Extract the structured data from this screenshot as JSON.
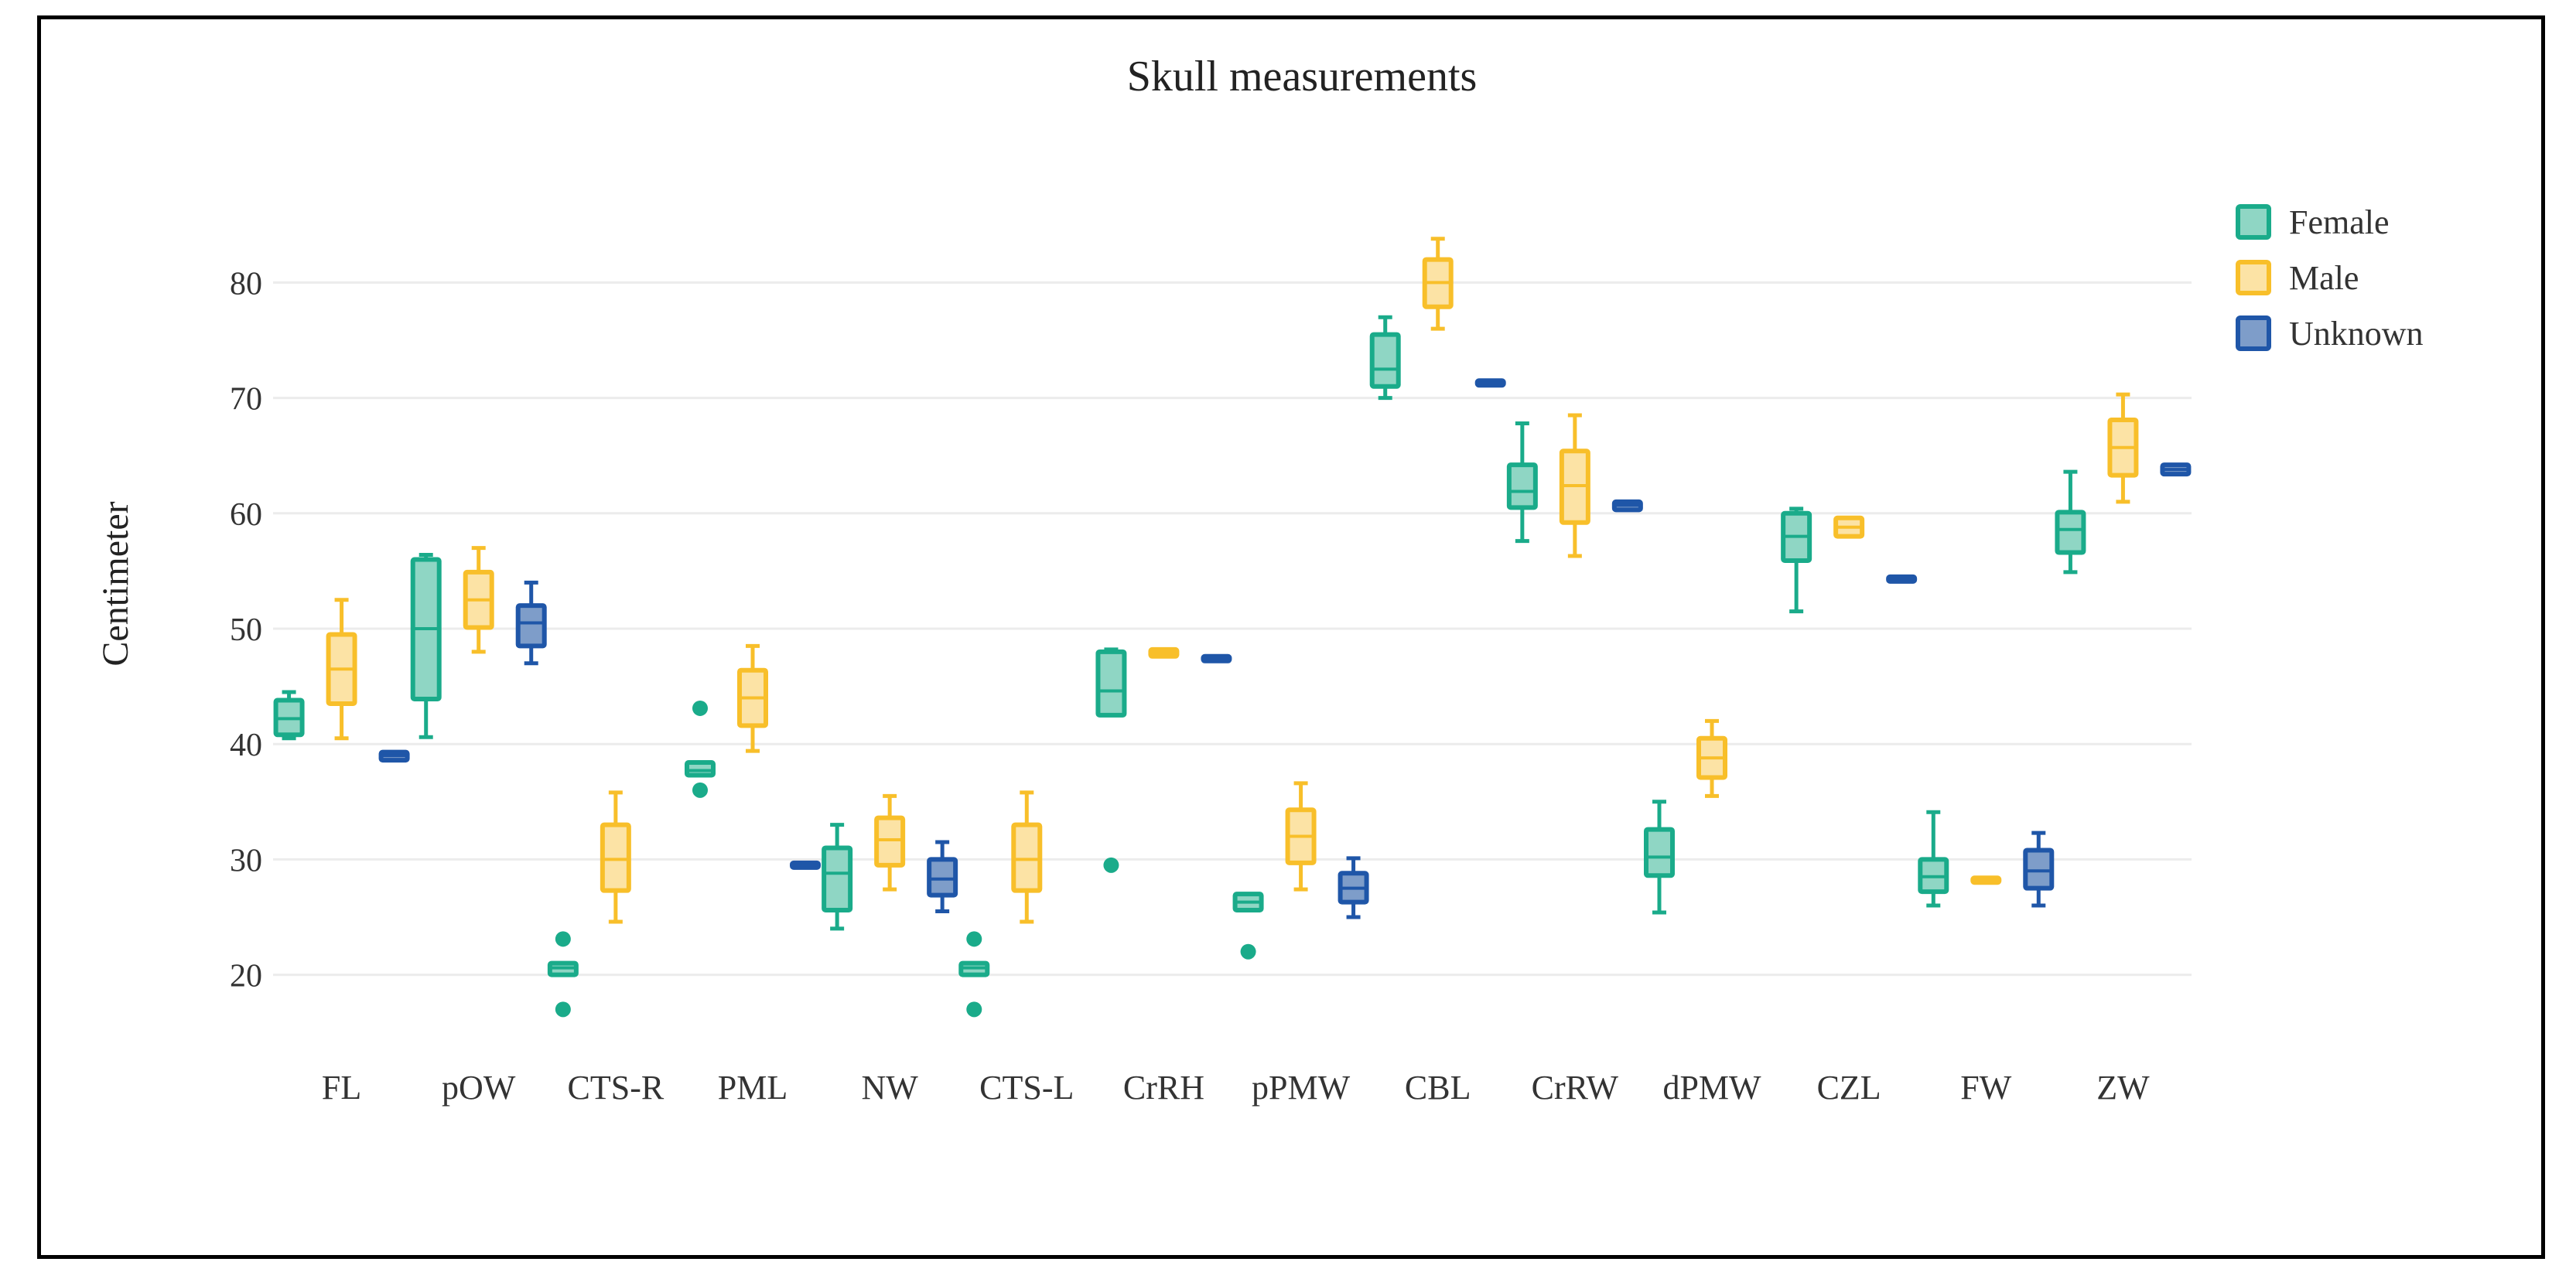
{
  "chart_data": {
    "type": "box",
    "title": "Skull measurements",
    "xlabel": "",
    "ylabel": "Centimeter",
    "ylim": [
      13,
      87
    ],
    "yticks": [
      20,
      30,
      40,
      50,
      60,
      70,
      80
    ],
    "grid": true,
    "legend_position": "top-right",
    "categories": [
      "FL",
      "pOW",
      "CTS-R",
      "PML",
      "NW",
      "CTS-L",
      "CrRH",
      "pPMW",
      "CBL",
      "CrRW",
      "dPMW",
      "CZL",
      "FW",
      "ZW"
    ],
    "series": [
      {
        "name": "Female",
        "color": "#1aab8a",
        "fill": "#8fd6c4",
        "boxes": [
          {
            "category": "FL",
            "min": 40.5,
            "q1": 40.8,
            "median": 42.2,
            "q3": 43.8,
            "max": 44.5,
            "outliers": []
          },
          {
            "category": "pOW",
            "min": 40.6,
            "q1": 43.9,
            "median": 50.0,
            "q3": 56.0,
            "max": 56.4,
            "outliers": []
          },
          {
            "category": "CTS-R",
            "min": 20.0,
            "q1": 20.0,
            "median": 20.6,
            "q3": 21.0,
            "max": 21.0,
            "outliers": [
              23.1,
              17.0
            ]
          },
          {
            "category": "PML",
            "min": 37.3,
            "q1": 37.3,
            "median": 37.7,
            "q3": 38.4,
            "max": 38.4,
            "outliers": [
              43.1,
              36.0
            ]
          },
          {
            "category": "NW",
            "min": 24.0,
            "q1": 25.6,
            "median": 28.8,
            "q3": 31.0,
            "max": 33.0,
            "outliers": []
          },
          {
            "category": "CTS-L",
            "min": 20.0,
            "q1": 20.0,
            "median": 20.6,
            "q3": 21.0,
            "max": 21.0,
            "outliers": [
              23.1,
              17.0
            ]
          },
          {
            "category": "CrRH",
            "min": 42.5,
            "q1": 42.5,
            "median": 44.6,
            "q3": 48.0,
            "max": 48.2,
            "outliers": [
              29.5
            ]
          },
          {
            "category": "pPMW",
            "min": 25.6,
            "q1": 25.6,
            "median": 26.3,
            "q3": 27.0,
            "max": 27.0,
            "outliers": [
              22.0
            ]
          },
          {
            "category": "CBL",
            "min": 70.0,
            "q1": 71.0,
            "median": 72.5,
            "q3": 75.5,
            "max": 77.0,
            "outliers": []
          },
          {
            "category": "CrRW",
            "min": 57.6,
            "q1": 60.5,
            "median": 61.9,
            "q3": 64.2,
            "max": 67.8,
            "outliers": []
          },
          {
            "category": "dPMW",
            "min": 25.4,
            "q1": 28.6,
            "median": 30.2,
            "q3": 32.6,
            "max": 35.0,
            "outliers": []
          },
          {
            "category": "CZL",
            "min": 51.5,
            "q1": 55.9,
            "median": 58.0,
            "q3": 60.0,
            "max": 60.4,
            "outliers": []
          },
          {
            "category": "FW",
            "min": 26.0,
            "q1": 27.2,
            "median": 28.5,
            "q3": 30.0,
            "max": 34.1,
            "outliers": []
          },
          {
            "category": "ZW",
            "min": 54.9,
            "q1": 56.6,
            "median": 58.6,
            "q3": 60.1,
            "max": 63.6,
            "outliers": []
          }
        ]
      },
      {
        "name": "Male",
        "color": "#f8bf2a",
        "fill": "#fce3a5",
        "boxes": [
          {
            "category": "FL",
            "min": 40.5,
            "q1": 43.5,
            "median": 46.5,
            "q3": 49.5,
            "max": 52.5,
            "outliers": []
          },
          {
            "category": "pOW",
            "min": 48.0,
            "q1": 50.1,
            "median": 52.5,
            "q3": 54.9,
            "max": 57.0,
            "outliers": []
          },
          {
            "category": "CTS-R",
            "min": 24.6,
            "q1": 27.3,
            "median": 30.0,
            "q3": 33.0,
            "max": 35.8,
            "outliers": []
          },
          {
            "category": "PML",
            "min": 39.4,
            "q1": 41.6,
            "median": 44.0,
            "q3": 46.4,
            "max": 48.5,
            "outliers": []
          },
          {
            "category": "NW",
            "min": 27.4,
            "q1": 29.5,
            "median": 31.7,
            "q3": 33.6,
            "max": 35.5,
            "outliers": []
          },
          {
            "category": "CTS-L",
            "min": 24.6,
            "q1": 27.3,
            "median": 30.0,
            "q3": 33.0,
            "max": 35.8,
            "outliers": []
          },
          {
            "category": "CrRH",
            "min": 47.6,
            "q1": 47.6,
            "median": 47.9,
            "q3": 48.2,
            "max": 48.2,
            "outliers": []
          },
          {
            "category": "pPMW",
            "min": 27.4,
            "q1": 29.7,
            "median": 32.0,
            "q3": 34.3,
            "max": 36.6,
            "outliers": []
          },
          {
            "category": "CBL",
            "min": 76.0,
            "q1": 77.9,
            "median": 80.0,
            "q3": 82.0,
            "max": 83.8,
            "outliers": []
          },
          {
            "category": "CrRW",
            "min": 56.3,
            "q1": 59.2,
            "median": 62.4,
            "q3": 65.4,
            "max": 68.5,
            "outliers": []
          },
          {
            "category": "dPMW",
            "min": 35.5,
            "q1": 37.1,
            "median": 38.8,
            "q3": 40.5,
            "max": 42.0,
            "outliers": []
          },
          {
            "category": "CZL",
            "min": 58.0,
            "q1": 58.0,
            "median": 58.8,
            "q3": 59.6,
            "max": 59.6,
            "outliers": []
          },
          {
            "category": "FW",
            "min": 28.2,
            "q1": 28.2,
            "median": 28.2,
            "q3": 28.2,
            "max": 28.2,
            "outliers": []
          },
          {
            "category": "ZW",
            "min": 61.0,
            "q1": 63.3,
            "median": 65.7,
            "q3": 68.1,
            "max": 70.3,
            "outliers": []
          }
        ]
      },
      {
        "name": "Unknown",
        "color": "#1f56a8",
        "fill": "#7e9dc9",
        "boxes": [
          {
            "category": "FL",
            "min": 38.6,
            "q1": 38.6,
            "median": 39.0,
            "q3": 39.3,
            "max": 39.3,
            "outliers": []
          },
          {
            "category": "pOW",
            "min": 47.0,
            "q1": 48.5,
            "median": 50.5,
            "q3": 52.0,
            "max": 54.0,
            "outliers": []
          },
          {
            "category": "PML",
            "min": 29.5,
            "q1": 29.5,
            "median": 29.5,
            "q3": 29.5,
            "max": 29.5,
            "outliers": []
          },
          {
            "category": "NW",
            "min": 25.5,
            "q1": 26.9,
            "median": 28.3,
            "q3": 30.0,
            "max": 31.5,
            "outliers": []
          },
          {
            "category": "CrRH",
            "min": 47.4,
            "q1": 47.4,
            "median": 47.4,
            "q3": 47.4,
            "max": 47.4,
            "outliers": []
          },
          {
            "category": "pPMW",
            "min": 25.0,
            "q1": 26.3,
            "median": 27.5,
            "q3": 28.8,
            "max": 30.1,
            "outliers": []
          },
          {
            "category": "CBL",
            "min": 71.3,
            "q1": 71.3,
            "median": 71.3,
            "q3": 71.3,
            "max": 71.3,
            "outliers": []
          },
          {
            "category": "CrRW",
            "min": 60.3,
            "q1": 60.3,
            "median": 60.7,
            "q3": 61.0,
            "max": 61.0,
            "outliers": []
          },
          {
            "category": "CZL",
            "min": 54.3,
            "q1": 54.3,
            "median": 54.3,
            "q3": 54.3,
            "max": 54.3,
            "outliers": []
          },
          {
            "category": "FW",
            "min": 26.0,
            "q1": 27.5,
            "median": 29.0,
            "q3": 30.8,
            "max": 32.3,
            "outliers": []
          },
          {
            "category": "ZW",
            "min": 63.4,
            "q1": 63.4,
            "median": 63.8,
            "q3": 64.2,
            "max": 64.2,
            "outliers": []
          }
        ]
      }
    ]
  }
}
